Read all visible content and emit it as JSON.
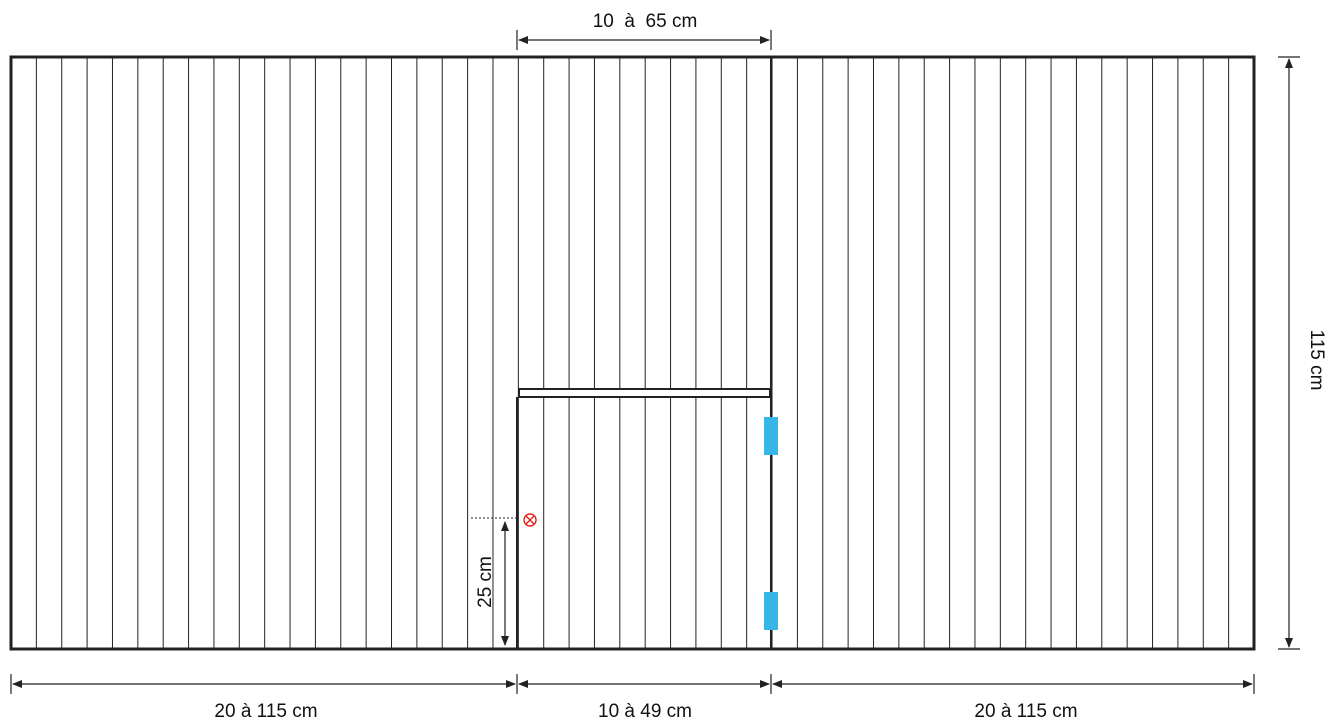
{
  "dimensions": {
    "top_opening": "10  à  65 cm",
    "right_height": "115 cm",
    "bottom_left": "20 à 115 cm",
    "bottom_middle": "10 à 49 cm",
    "bottom_right": "20 à 115 cm",
    "handle_height": "25 cm"
  },
  "panels": {
    "slat_count_total": 49,
    "outline_color": "#222222"
  },
  "marks": {
    "hinge_color": "#35B6E6",
    "handle_marker_color": "#E0261B",
    "handle_marker_icon": "circled-x-icon"
  }
}
